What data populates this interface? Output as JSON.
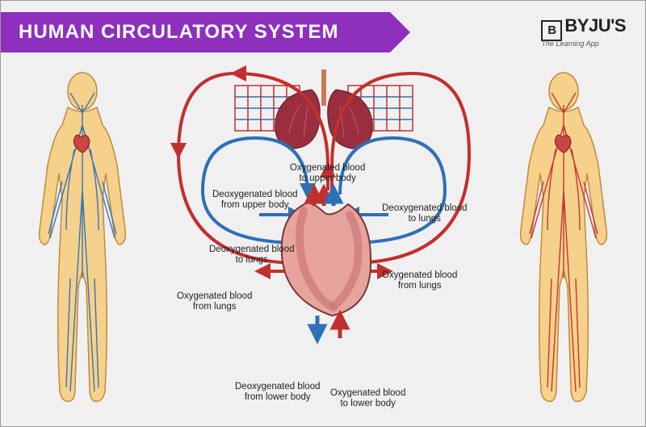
{
  "banner_title": "HUMAN CIRCULATORY SYSTEM",
  "logo": {
    "square": "B",
    "text": "BYJU'S",
    "tagline": "The Learning App"
  },
  "colors": {
    "banner": "#8e2fbd",
    "outline": "#333333",
    "skin": "#f6d18b",
    "skin_stroke": "#c08a3a",
    "vein": "#2f6fb6",
    "artery": "#c22f2f",
    "heart_muscle": "#d98a8a",
    "heart_dark": "#8a2c3e",
    "lung": "#9b2e3e",
    "grid": "#6aa0d6"
  },
  "labels": {
    "oxy_upper": "Oxygenated blood\nto upper body",
    "deoxy_upper": "Deoxygenated blood\nfrom upper body",
    "deoxy_lungs_r": "Deoxygenated blood\nto lungs",
    "deoxy_lungs_l": "Deoxygenated blood\nto lungs",
    "oxy_lungs_r": "Oxygenated blood\nfrom lungs",
    "oxy_lungs_l": "Oxygenated blood\nfrom lungs",
    "deoxy_lower": "Deoxygenated blood\nfrom lower body",
    "oxy_lower": "Oxygenated blood\nto lower body"
  },
  "diagram": {
    "type": "infographic",
    "figure_left": "venous system (blue vessels)",
    "figure_right": "arterial system (red vessels)",
    "flow_arrows": {
      "oxygenated": "#c22f2f",
      "deoxygenated": "#2f6fb6"
    },
    "line_width": 4
  }
}
